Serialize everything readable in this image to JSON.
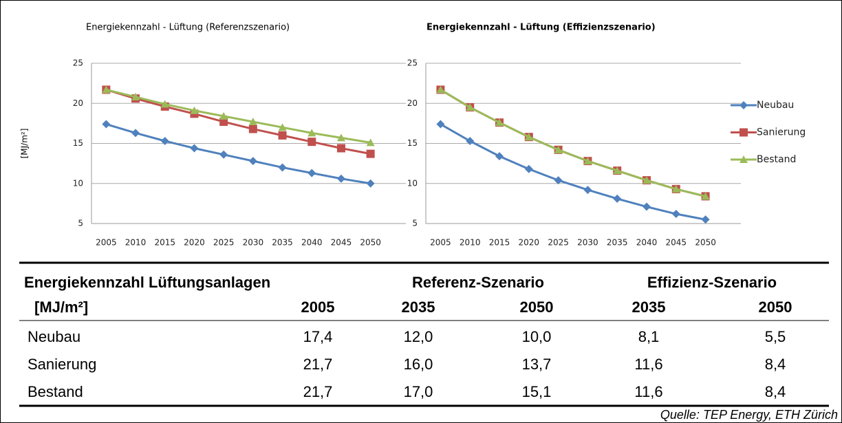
{
  "chart_data": [
    {
      "type": "line",
      "title": "Energiekennzahl - Lüftung (Referenzszenario)",
      "y_label": "[MJ/m²]",
      "categories": [
        "2005",
        "2010",
        "2015",
        "2020",
        "2025",
        "2030",
        "2035",
        "2040",
        "2045",
        "2050"
      ],
      "ylim": [
        5,
        25
      ],
      "yticks": [
        5,
        10,
        15,
        20,
        25
      ],
      "grid": true,
      "legend": false,
      "series": [
        {
          "name": "Neubau",
          "color": "#4f81bd",
          "marker": "diamond",
          "values": [
            17.4,
            16.3,
            15.3,
            14.4,
            13.6,
            12.8,
            12.0,
            11.3,
            10.6,
            10.0
          ]
        },
        {
          "name": "Sanierung",
          "color": "#c0504d",
          "marker": "square",
          "values": [
            21.7,
            20.6,
            19.6,
            18.7,
            17.7,
            16.8,
            16.0,
            15.2,
            14.4,
            13.7
          ]
        },
        {
          "name": "Bestand",
          "color": "#9bbb59",
          "marker": "triangle",
          "values": [
            21.7,
            20.8,
            19.9,
            19.1,
            18.4,
            17.7,
            17.0,
            16.3,
            15.7,
            15.1
          ]
        }
      ]
    },
    {
      "type": "line",
      "title": "Energiekennzahl - Lüftung (Effizienzszenario)",
      "categories": [
        "2005",
        "2010",
        "2015",
        "2020",
        "2025",
        "2030",
        "2035",
        "2040",
        "2045",
        "2050"
      ],
      "ylim": [
        5,
        25
      ],
      "yticks": [
        5,
        10,
        15,
        20,
        25
      ],
      "grid": true,
      "legend": "right",
      "series": [
        {
          "name": "Neubau",
          "color": "#4f81bd",
          "marker": "diamond",
          "values": [
            17.4,
            15.3,
            13.4,
            11.8,
            10.4,
            9.2,
            8.1,
            7.1,
            6.2,
            5.5
          ]
        },
        {
          "name": "Sanierung",
          "color": "#c0504d",
          "marker": "square",
          "values": [
            21.7,
            19.5,
            17.6,
            15.8,
            14.2,
            12.8,
            11.6,
            10.4,
            9.3,
            8.4
          ]
        },
        {
          "name": "Bestand",
          "color": "#9bbb59",
          "marker": "triangle",
          "values": [
            21.7,
            19.5,
            17.6,
            15.8,
            14.2,
            12.8,
            11.6,
            10.4,
            9.3,
            8.4
          ]
        }
      ]
    }
  ],
  "table": {
    "header": [
      [
        "Energiekennzahl Lüftungsanlagen",
        "Referenz-Szenario",
        "Effizienz-Szenario"
      ],
      [
        "[MJ/m²]",
        "2005",
        "2035",
        "2050",
        "2035",
        "2050"
      ]
    ],
    "rows": [
      [
        "Neubau",
        "17,4",
        "12,0",
        "10,0",
        "8,1",
        "5,5"
      ],
      [
        "Sanierung",
        "21,7",
        "16,0",
        "13,7",
        "11,6",
        "8,4"
      ],
      [
        "Bestand",
        "21,7",
        "17,0",
        "15,1",
        "11,6",
        "8,4"
      ]
    ]
  },
  "source": "Quelle: TEP Energy, ETH Zürich"
}
